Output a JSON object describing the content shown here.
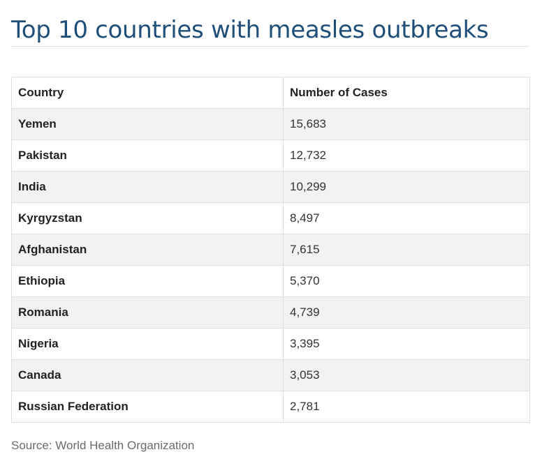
{
  "title": "Top 10 countries with measles outbreaks",
  "source": "Source: World Health Organization",
  "colors": {
    "title": "#1f4e79",
    "row_stripe": "#f2f2f2",
    "border": "#dddddd",
    "source_text": "#6b6b6b"
  },
  "chart_data": {
    "type": "table",
    "title": "Top 10 countries with measles outbreaks",
    "columns": [
      "Country",
      "Number of Cases"
    ],
    "rows": [
      {
        "country": "Yemen",
        "cases": "15,683"
      },
      {
        "country": "Pakistan",
        "cases": "12,732"
      },
      {
        "country": "India",
        "cases": "10,299"
      },
      {
        "country": "Kyrgyzstan",
        "cases": "8,497"
      },
      {
        "country": "Afghanistan",
        "cases": "7,615"
      },
      {
        "country": "Ethiopia",
        "cases": "5,370"
      },
      {
        "country": "Romania",
        "cases": "4,739"
      },
      {
        "country": "Nigeria",
        "cases": "3,395"
      },
      {
        "country": "Canada",
        "cases": "3,053"
      },
      {
        "country": "Russian Federation",
        "cases": "2,781"
      }
    ]
  }
}
